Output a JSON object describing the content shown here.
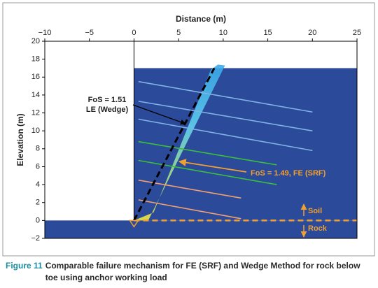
{
  "chart_data": {
    "type": "contour",
    "xlabel": "Distance (m)",
    "ylabel": "Elevation (m)",
    "xlim": [
      -10,
      25
    ],
    "ylim": [
      -2,
      20
    ],
    "xticks": [
      {
        "value": -10,
        "label": "−10"
      },
      {
        "value": -5,
        "label": "−5"
      },
      0,
      5,
      10,
      15,
      20,
      25
    ],
    "yticks": [
      {
        "value": -2,
        "label": "−2"
      },
      0,
      2,
      4,
      6,
      8,
      10,
      12,
      14,
      16,
      18,
      20
    ],
    "rock": {
      "x": [
        -10,
        25
      ],
      "y": [
        -2,
        0
      ],
      "color": "#2b4a9a"
    },
    "slope": {
      "x": [
        0,
        25
      ],
      "y": [
        0,
        17
      ],
      "color": "#2b4a9a"
    },
    "shear_band": {
      "x": [
        0,
        1.6,
        10.2,
        9.4,
        8.6,
        2.2
      ],
      "y": [
        0,
        0,
        17.3,
        17.4,
        16.8,
        0.9
      ]
    },
    "anchors": [
      {
        "x": [
          0.5,
          20
        ],
        "y": [
          15.5,
          12.1
        ],
        "color": "#7fb2e5"
      },
      {
        "x": [
          0.5,
          20
        ],
        "y": [
          13.3,
          10
        ],
        "color": "#7fb2e5"
      },
      {
        "x": [
          0.5,
          20
        ],
        "y": [
          11.3,
          7.8
        ],
        "color": "#7fb2e5"
      },
      {
        "x": [
          0.5,
          16
        ],
        "y": [
          8.8,
          6.2
        ],
        "color": "#3cbf3c"
      },
      {
        "x": [
          0.5,
          16
        ],
        "y": [
          6.7,
          4
        ],
        "color": "#3cbf3c"
      },
      {
        "x": [
          0.5,
          12
        ],
        "y": [
          4.5,
          2.5
        ],
        "color": "#f0a070"
      },
      {
        "x": [
          0.5,
          12
        ],
        "y": [
          2.3,
          0.2
        ],
        "color": "#f0a070"
      }
    ],
    "wedge": {
      "x": [
        0,
        9
      ],
      "y": [
        0,
        17
      ]
    },
    "interface": {
      "x": [
        0,
        25
      ],
      "y": [
        0,
        0
      ],
      "color": "#f0a030"
    },
    "annotations": {
      "le_fos": "FoS = 1.51",
      "le_method": "LE (Wedge)",
      "fe": "FoS = 1.49, FE (SRF)",
      "soil": "Soil",
      "rock": "Rock"
    }
  },
  "caption": {
    "number": "Figure 11",
    "text": "Comparable failure mechanism for FE (SRF) and Wedge Method for rock below toe using anchor working load"
  }
}
